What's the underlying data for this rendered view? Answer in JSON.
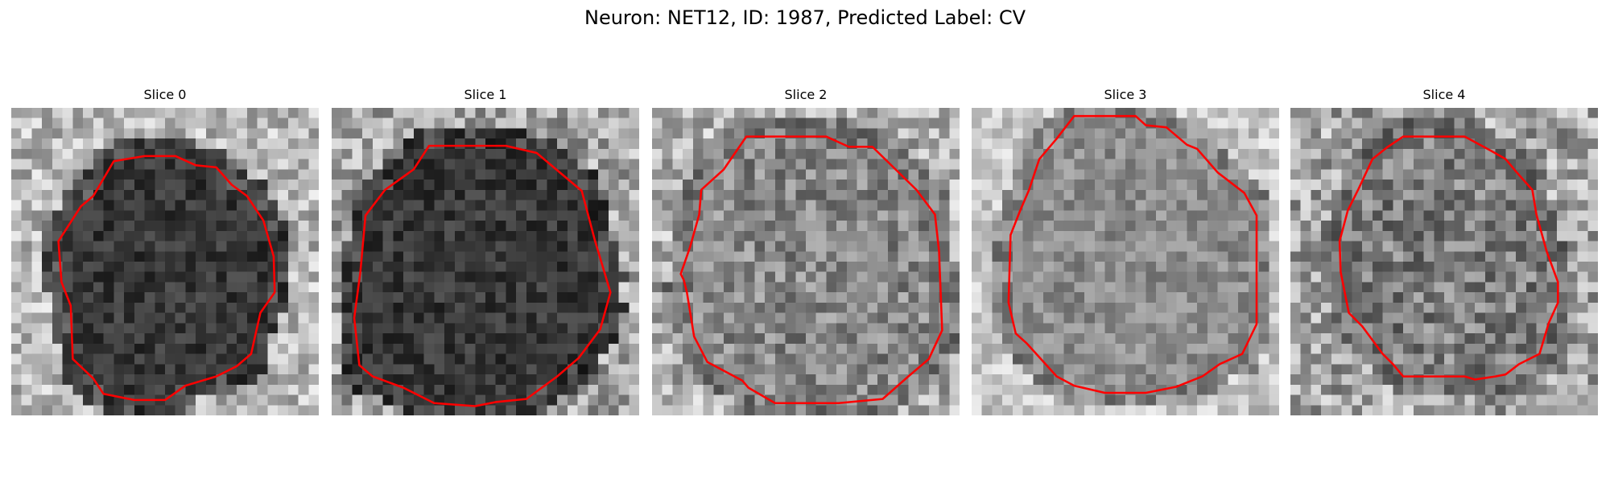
{
  "figure": {
    "title": "Neuron: NET12, ID: 1987, Predicted Label: CV"
  },
  "panels": [
    {
      "title": "Slice 0",
      "grid": 30,
      "seed": 11,
      "interior": 55,
      "interior_var": 30,
      "outside": 185,
      "outside_var": 55,
      "contour_color": "#ff0000"
    },
    {
      "title": "Slice 1",
      "grid": 30,
      "seed": 22,
      "interior": 55,
      "interior_var": 30,
      "outside": 165,
      "outside_var": 60,
      "contour_color": "#ff0000"
    },
    {
      "title": "Slice 2",
      "grid": 30,
      "seed": 33,
      "interior": 135,
      "interior_var": 50,
      "outside": 175,
      "outside_var": 60,
      "contour_color": "#ff0000"
    },
    {
      "title": "Slice 3",
      "grid": 30,
      "seed": 44,
      "interior": 140,
      "interior_var": 35,
      "outside": 200,
      "outside_var": 40,
      "contour_color": "#ff0000"
    },
    {
      "title": "Slice 4",
      "grid": 30,
      "seed": 55,
      "interior": 125,
      "interior_var": 55,
      "outside": 165,
      "outside_var": 65,
      "contour_color": "#ff0000"
    }
  ]
}
